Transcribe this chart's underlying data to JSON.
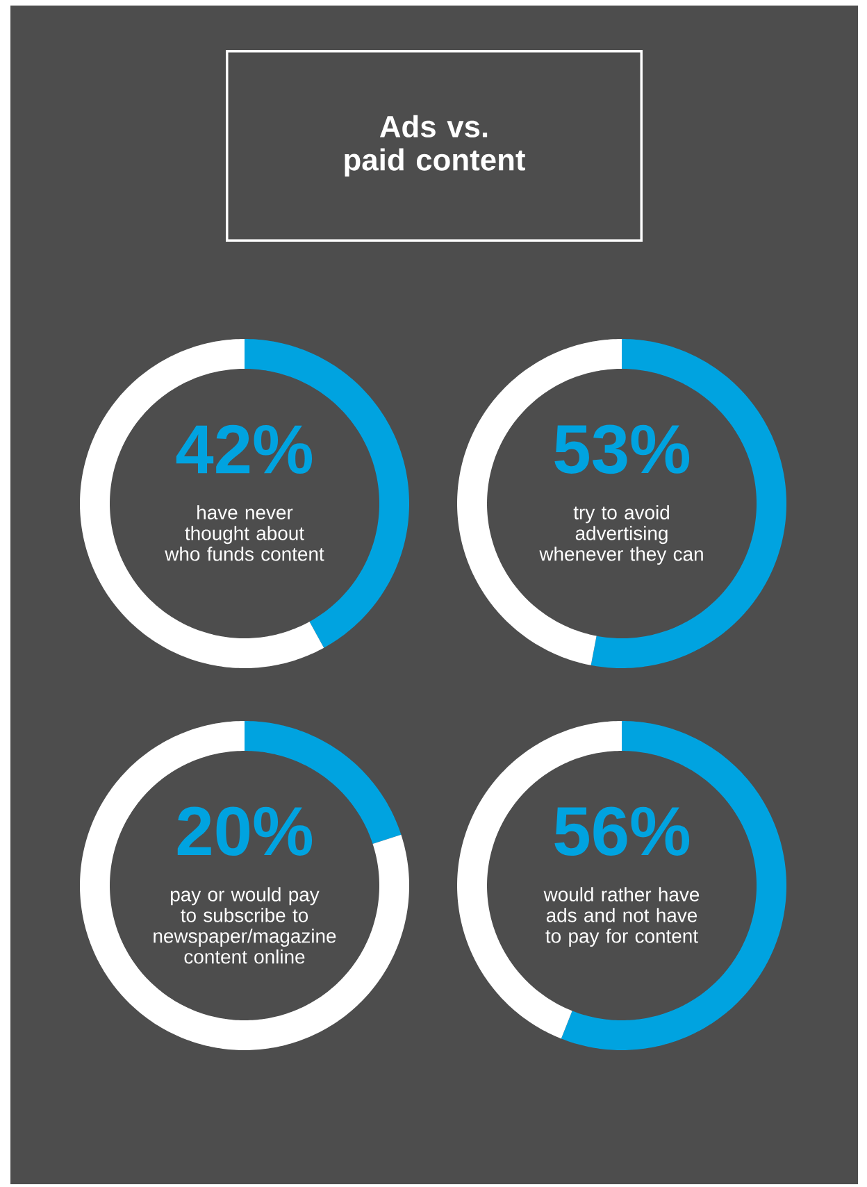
{
  "chart_data": [
    {
      "type": "other",
      "title": "Ads vs. paid content"
    },
    {
      "type": "donut",
      "categories": [
        null,
        null
      ],
      "values": [
        42,
        58
      ],
      "colors": [
        "#00a3e0",
        "#ffffff"
      ],
      "value_labels": [
        "42%",
        null
      ],
      "annotations": [
        "have never thought about who funds content"
      ]
    },
    {
      "type": "donut",
      "categories": [
        null,
        null
      ],
      "values": [
        53,
        47
      ],
      "colors": [
        "#00a3e0",
        "#ffffff"
      ],
      "value_labels": [
        "53%",
        null
      ],
      "annotations": [
        "try to avoid advertising whenever they can"
      ]
    },
    {
      "type": "donut",
      "categories": [
        null,
        null
      ],
      "values": [
        20,
        80
      ],
      "colors": [
        "#00a3e0",
        "#ffffff"
      ],
      "value_labels": [
        "20%",
        null
      ],
      "annotations": [
        "pay or would pay to subscribe to newspaper/magazine content online"
      ]
    },
    {
      "type": "donut",
      "categories": [
        null,
        null
      ],
      "values": [
        56,
        44
      ],
      "colors": [
        "#00a3e0",
        "#ffffff"
      ],
      "value_labels": [
        "56%",
        null
      ],
      "annotations": [
        "would rather have ads and not have to pay for content"
      ]
    }
  ]
}
